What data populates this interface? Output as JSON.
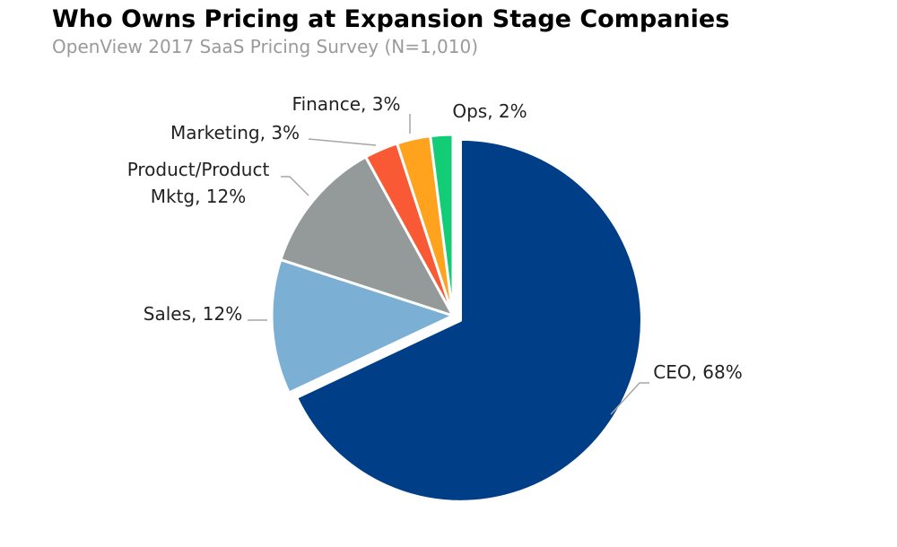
{
  "chart_data": {
    "type": "pie",
    "title": "Who Owns Pricing at Expansion Stage Companies",
    "subtitle": "OpenView 2017 SaaS Pricing Survey (N=1,010)",
    "slices": [
      {
        "label": "CEO, 68%",
        "value": 68,
        "color": "#003f87"
      },
      {
        "label": "Sales, 12%",
        "value": 12,
        "color": "#7bafd4"
      },
      {
        "label": "Product/Product Mktg, 12%",
        "value": 12,
        "color": "#939a99"
      },
      {
        "label": "Marketing, 3%",
        "value": 3,
        "color": "#f95a35"
      },
      {
        "label": "Finance, 3%",
        "value": 3,
        "color": "#ffa21d"
      },
      {
        "label": "Ops, 2%",
        "value": 2,
        "color": "#12cc76"
      }
    ]
  }
}
